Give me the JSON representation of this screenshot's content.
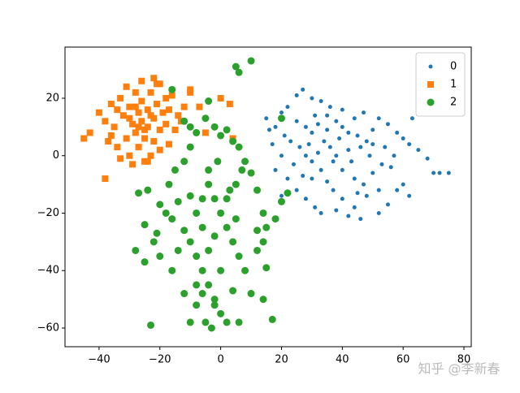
{
  "chart_data": {
    "type": "scatter",
    "xlim": [
      -51.2,
      82.4
    ],
    "ylim": [
      -66.5,
      37.8
    ],
    "xticks": [
      {
        "value": -40,
        "label": "−40"
      },
      {
        "value": -20,
        "label": "−20"
      },
      0,
      20,
      40,
      60,
      80
    ],
    "yticks": [
      {
        "value": -60,
        "label": "−60"
      },
      {
        "value": -40,
        "label": "−40"
      },
      {
        "value": -20,
        "label": "−20"
      },
      0,
      20
    ],
    "legend": "upper right",
    "watermark": "知乎 @李新春",
    "series": [
      {
        "name": "0",
        "color": "#1f77b4",
        "marker": "dot",
        "x": [
          15,
          18,
          20,
          22,
          25,
          27,
          30,
          33,
          36,
          25,
          28,
          30,
          32,
          35,
          38,
          40,
          42,
          45,
          48,
          50,
          52,
          55,
          58,
          60,
          62,
          65,
          68,
          70,
          72,
          75,
          66,
          63,
          57,
          53,
          50,
          47,
          45,
          44,
          40,
          37,
          35,
          33,
          30,
          28,
          26,
          23,
          20,
          18,
          22,
          25,
          28,
          31,
          33,
          38,
          42,
          46,
          52,
          55,
          58,
          60,
          62,
          56,
          49,
          46,
          43,
          40,
          38,
          36,
          34,
          32,
          30,
          27,
          24,
          21,
          17,
          35,
          40,
          44,
          47,
          50,
          54,
          42,
          39,
          31,
          29,
          37,
          44,
          48,
          52,
          20,
          16
        ],
        "values": [
          13,
          10,
          15,
          17,
          21,
          23,
          20,
          19,
          17,
          12,
          10,
          8,
          11,
          9,
          12,
          10,
          8,
          7,
          5,
          9,
          13,
          11,
          8,
          6,
          4,
          2,
          -1,
          -6,
          -6,
          -6,
          16,
          13,
          0,
          -3,
          -6,
          -10,
          -13,
          -18,
          -15,
          -12,
          -9,
          -5,
          -2,
          0,
          3,
          5,
          0,
          -5,
          -8,
          -12,
          -15,
          -18,
          -20,
          -19,
          -21,
          -22,
          -20,
          -17,
          -12,
          -10,
          -14,
          -4,
          0,
          3,
          -2,
          -5,
          0,
          3,
          5,
          1,
          -8,
          -7,
          -3,
          7,
          4,
          14,
          16,
          13,
          15,
          4,
          3,
          2,
          6,
          14,
          4,
          -2,
          -8,
          -14,
          -12,
          -14,
          9
        ]
      },
      {
        "name": "1",
        "color": "#ff7f0e",
        "marker": "square",
        "x": [
          -45,
          -43,
          -40,
          -38,
          -38,
          -36,
          -35,
          -34,
          -33,
          -32,
          -31,
          -30,
          -30,
          -29,
          -28,
          -28,
          -27,
          -27,
          -26,
          -26,
          -25,
          -25,
          -24,
          -24,
          -23,
          -23,
          -22,
          -22,
          -21,
          -21,
          -20,
          -20,
          -19,
          -18,
          -17,
          -17,
          -16,
          -15,
          -14,
          -13,
          -12,
          -10,
          -10,
          -7,
          -5,
          0,
          3,
          4,
          -33,
          -36,
          -29,
          -24,
          -31,
          -26,
          -34,
          -37,
          -20,
          -18,
          -22,
          -28,
          -30,
          -25,
          -23,
          -27
        ],
        "values": [
          6,
          8,
          15,
          12,
          -8,
          18,
          10,
          3,
          20,
          14,
          6,
          17,
          0,
          11,
          22,
          8,
          15,
          3,
          19,
          12,
          6,
          -2,
          16,
          10,
          22,
          0,
          13,
          5,
          25,
          18,
          9,
          2,
          15,
          11,
          4,
          16,
          21,
          9,
          14,
          12,
          17,
          23,
          22,
          17,
          8,
          20,
          18,
          6,
          -1,
          7,
          -3,
          -2,
          24,
          26,
          16,
          5,
          25,
          20,
          27,
          17,
          13,
          9,
          14,
          10
        ]
      },
      {
        "name": "2",
        "color": "#2ca02c",
        "marker": "circle",
        "x": [
          -23,
          -18,
          -12,
          -10,
          -8,
          -6,
          -4,
          -2,
          0,
          2,
          -5,
          -8,
          -12,
          -16,
          -20,
          -22,
          -25,
          -28,
          -25,
          -27,
          -24,
          -20,
          -17,
          -15,
          -12,
          -10,
          -8,
          -10,
          -12,
          -5,
          -2,
          0,
          2,
          4,
          6,
          8,
          10,
          12,
          14,
          12,
          14,
          12,
          15,
          17,
          14,
          10,
          8,
          6,
          4,
          2,
          0,
          -2,
          -4,
          -6,
          -8,
          -10,
          -14,
          -16,
          -6,
          -2,
          2,
          5,
          7,
          -4,
          -1,
          3,
          5,
          -4,
          -8,
          -14,
          -21,
          0,
          4,
          -3,
          6,
          15,
          20,
          18,
          22,
          -16,
          -4,
          5,
          6,
          10,
          20,
          -2,
          -10,
          -6
        ],
        "values": [
          -59,
          -20,
          -26,
          -30,
          -35,
          -40,
          -45,
          -50,
          -55,
          -58,
          -58,
          -52,
          -48,
          -40,
          -35,
          -30,
          -37,
          -33,
          -24,
          -13,
          -12,
          -17,
          -10,
          -5,
          -2,
          3,
          8,
          10,
          12,
          13,
          10,
          7,
          9,
          5,
          3,
          -2,
          -6,
          -12,
          -20,
          -26,
          -30,
          -33,
          -39,
          -57,
          -50,
          -48,
          -40,
          -35,
          -30,
          -25,
          -20,
          -15,
          -10,
          -15,
          -20,
          -14,
          -16,
          -22,
          -25,
          -28,
          -15,
          -10,
          -5,
          -5,
          -2,
          -12,
          -22,
          -33,
          -45,
          -33,
          -27,
          -40,
          -47,
          -60,
          -58,
          -25,
          -16,
          -22,
          -13,
          23,
          19,
          31,
          29,
          33,
          13,
          -52,
          -58,
          -48
        ]
      }
    ]
  }
}
